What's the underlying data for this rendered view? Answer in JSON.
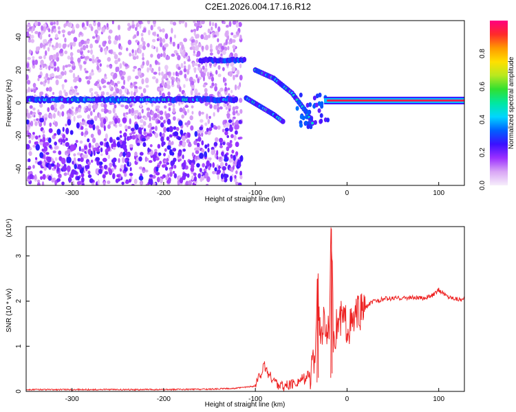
{
  "figure_title": "C2E1.2026.004.17.16.R12",
  "chart_data": [
    {
      "type": "heatmap",
      "xlabel": "Height of straight line (km)",
      "ylabel": "Frequency (Hz)",
      "xlim": [
        -350,
        128
      ],
      "ylim": [
        -50,
        50
      ],
      "xticks": [
        -300,
        -200,
        -100,
        0,
        100
      ],
      "yticks": [
        -40,
        -20,
        0,
        20,
        40
      ],
      "colorbar": {
        "label": "Normalized spectral amplitude",
        "range": [
          0,
          1
        ],
        "ticks": [
          "0.0",
          "0.2",
          "0.4",
          "0.6",
          "0.8"
        ],
        "colormap": [
          "#f6eefb",
          "#d9a6f5",
          "#9b30ff",
          "#3b10ff",
          "#0060ff",
          "#00d6ff",
          "#00e8a0",
          "#30e030",
          "#b8e820",
          "#ffe000",
          "#ff9a00",
          "#ff2a2a",
          "#ff0080"
        ]
      },
      "features": [
        {
          "name": "main_band",
          "x": [
            -350,
            -120
          ],
          "freq": 2,
          "amplitude": 0.3
        },
        {
          "name": "upper_band",
          "x": [
            -160,
            -112
          ],
          "freq": 26,
          "amplitude": 0.3
        },
        {
          "name": "upper_chirp",
          "x": [
            [
              -100,
              20
            ],
            [
              -80,
              15
            ],
            [
              -60,
              6
            ],
            [
              -45,
              -5
            ],
            [
              -36,
              -14
            ]
          ],
          "amplitude": 0.4
        },
        {
          "name": "lower_chirp",
          "x": [
            [
              -110,
              3
            ],
            [
              -95,
              -2
            ],
            [
              -80,
              -7
            ],
            [
              -68,
              -12
            ]
          ],
          "amplitude": 0.4
        },
        {
          "name": "steady_tone",
          "x": [
            -25,
            128
          ],
          "freq": 1.5,
          "amplitude": 0.95
        },
        {
          "name": "background_noise",
          "x": [
            -350,
            -115
          ],
          "freq": [
            -50,
            50
          ],
          "amplitude": 0.1
        }
      ]
    },
    {
      "type": "line",
      "xlabel": "Height of straight line (km)",
      "ylabel": "SNR (10 * v/v)",
      "multiplier": "(x10⁴)",
      "xlim": [
        -350,
        128
      ],
      "ylim": [
        0,
        3.65
      ],
      "xticks": [
        -300,
        -200,
        -100,
        0,
        100
      ],
      "yticks": [
        0,
        1,
        2,
        3
      ],
      "series": [
        {
          "color": "#ee2222",
          "x": [
            -350,
            -300,
            -250,
            -200,
            -150,
            -120,
            -100,
            -95,
            -90,
            -85,
            -80,
            -75,
            -70,
            -65,
            -60,
            -55,
            -50,
            -45,
            -40,
            -35,
            -32,
            -30,
            -25,
            -20,
            -17,
            -15,
            -12,
            -10,
            -5,
            0,
            5,
            10,
            15,
            20,
            25,
            30,
            35,
            40,
            50,
            60,
            70,
            80,
            90,
            95,
            100,
            110,
            120,
            128
          ],
          "y": [
            0.04,
            0.04,
            0.04,
            0.04,
            0.05,
            0.07,
            0.12,
            0.35,
            0.55,
            0.35,
            0.25,
            0.15,
            0.12,
            0.13,
            0.15,
            0.2,
            0.25,
            0.3,
            0.38,
            0.8,
            2.5,
            1.2,
            1.6,
            1.2,
            3.6,
            1.3,
            1.4,
            1.5,
            1.6,
            1.5,
            1.45,
            1.65,
            1.75,
            1.85,
            1.95,
            2.0,
            2.02,
            2.05,
            2.06,
            2.07,
            2.08,
            2.06,
            2.1,
            2.15,
            2.25,
            2.1,
            2.05,
            2.03
          ]
        }
      ]
    }
  ]
}
